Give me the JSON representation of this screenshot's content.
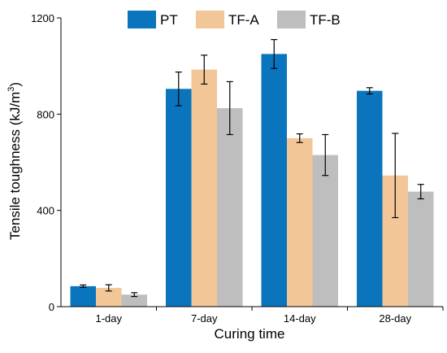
{
  "chart_data": {
    "type": "bar",
    "title": "",
    "xlabel": "Curing time",
    "ylabel": "Tensile toughness (kJ/m³)",
    "ylabel_parts": {
      "main": "Tensile toughness (kJ/m",
      "sup": "3",
      "close": ")"
    },
    "ylim": [
      0,
      1200
    ],
    "yticks": [
      0,
      400,
      800,
      1200
    ],
    "categories": [
      "1-day",
      "7-day",
      "14-day",
      "28-day"
    ],
    "legend_position": "top-center",
    "grid": false,
    "series": [
      {
        "name": "PT",
        "color": "#0a75bd",
        "values": [
          85,
          905,
          1050,
          897
        ],
        "errors": [
          5,
          70,
          60,
          13
        ]
      },
      {
        "name": "TF-A",
        "color": "#f2c697",
        "values": [
          78,
          985,
          700,
          545
        ],
        "errors": [
          13,
          60,
          18,
          175
        ]
      },
      {
        "name": "TF-B",
        "color": "#bebebe",
        "values": [
          50,
          825,
          630,
          478
        ],
        "errors": [
          8,
          110,
          85,
          30
        ]
      }
    ]
  }
}
